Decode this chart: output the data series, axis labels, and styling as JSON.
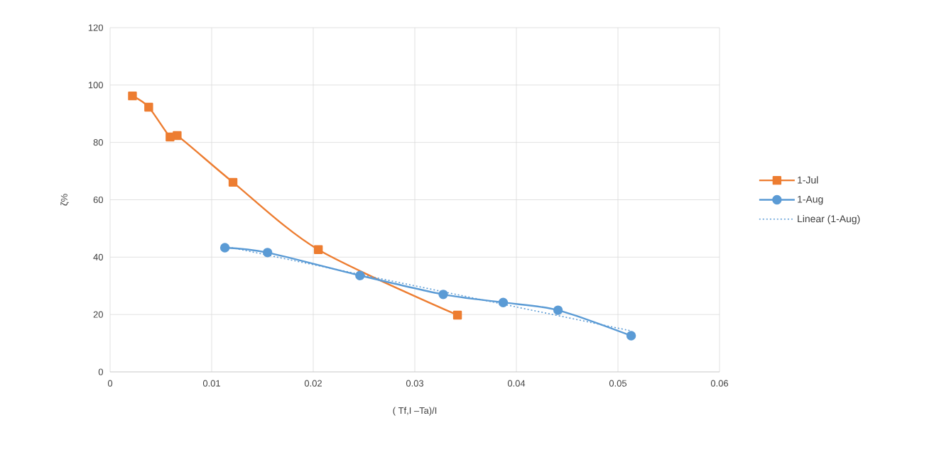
{
  "chart_data": {
    "type": "line",
    "xlabel": "( Tf,I –Ta)/I",
    "ylabel": "ζ%",
    "xlim": [
      0,
      0.06
    ],
    "xticks": [
      0,
      0.01,
      0.02,
      0.03,
      0.04,
      0.05,
      0.06
    ],
    "ylim": [
      0,
      120
    ],
    "yticks": [
      0,
      20,
      40,
      60,
      80,
      100,
      120
    ],
    "grid": true,
    "legend": "right",
    "series": [
      {
        "name": "1-Jul",
        "color": "#ed7d31",
        "marker": "square",
        "line_style": "solid",
        "x": [
          0.0022,
          0.0038,
          0.0059,
          0.0066,
          0.0121,
          0.0205,
          0.0342
        ],
        "values": [
          96.2,
          92.3,
          81.9,
          82.4,
          66.1,
          42.6,
          19.8
        ]
      },
      {
        "name": "1-Aug",
        "color": "#5b9bd5",
        "marker": "circle",
        "line_style": "solid",
        "x": [
          0.0113,
          0.0155,
          0.0246,
          0.0328,
          0.0387,
          0.0441,
          0.0513
        ],
        "values": [
          43.3,
          41.6,
          33.6,
          27.0,
          24.2,
          21.5,
          12.6
        ]
      },
      {
        "name": "Linear (1-Aug)",
        "color": "#5b9bd5",
        "marker": "none",
        "line_style": "dotted",
        "x": [
          0.0113,
          0.0513
        ],
        "values": [
          43.8,
          14.3
        ]
      }
    ]
  }
}
